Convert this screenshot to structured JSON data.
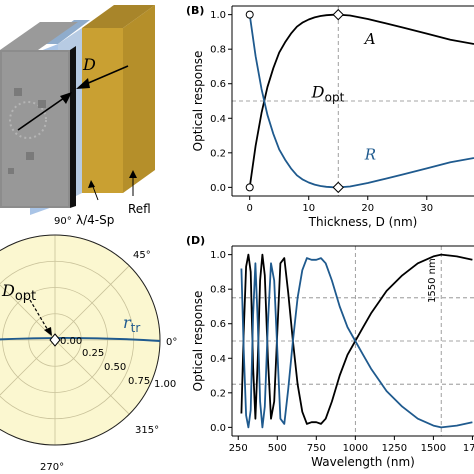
{
  "panels": {
    "b": "(B)",
    "d": "(D)"
  },
  "device": {
    "label_d": "D",
    "label_spacer": "λ/4-Sp",
    "label_refl": "Refl"
  },
  "polar": {
    "angle_labels": {
      "a90": "90°",
      "a45": "45°",
      "a0": "0°",
      "a315": "315°",
      "a270": "270°"
    },
    "radial_labels": {
      "r0": "0.00",
      "r25": "0.25",
      "r50": "0.50",
      "r75": "0.75",
      "r100": "1.00"
    },
    "dopt_label": "D",
    "dopt_sub": "opt",
    "rtr_label": "r",
    "rtr_sub": "tr"
  },
  "colors": {
    "a_curve": "#000000",
    "r_curve": "#1f5a8e",
    "polar_bg": "#fbf7d0",
    "reflector": "#c79a2c",
    "spacer": "#a9c4e6"
  },
  "chart_data": [
    {
      "panel": "B",
      "type": "line",
      "xlabel": "Thickness, D (nm)",
      "ylabel": "Optical response",
      "xlim": [
        -3,
        38
      ],
      "ylim": [
        -0.05,
        1.05
      ],
      "xticks": [
        "0",
        "10",
        "20",
        "30"
      ],
      "yticks": [
        "0.0",
        "0.2",
        "0.4",
        "0.6",
        "0.8",
        "1.0"
      ],
      "grid": "dashed reference lines at 0.5 and at x = 15",
      "annotation": {
        "text": "D",
        "sub": "opt",
        "x": 15
      },
      "series": [
        {
          "name": "A",
          "color": "#000000",
          "x": [
            0,
            1,
            2,
            3,
            4,
            5,
            6,
            7,
            8,
            9,
            10,
            11,
            12,
            13,
            14,
            15,
            17,
            20,
            23,
            26,
            30,
            34,
            38
          ],
          "y": [
            0,
            0.24,
            0.43,
            0.58,
            0.69,
            0.78,
            0.84,
            0.89,
            0.93,
            0.955,
            0.972,
            0.984,
            0.992,
            0.997,
            0.999,
            1.0,
            0.995,
            0.975,
            0.95,
            0.925,
            0.89,
            0.855,
            0.83
          ]
        },
        {
          "name": "R",
          "color": "#1f5a8e",
          "x": [
            0,
            1,
            2,
            3,
            4,
            5,
            6,
            7,
            8,
            9,
            10,
            11,
            12,
            13,
            14,
            15,
            17,
            20,
            23,
            26,
            30,
            34,
            38
          ],
          "y": [
            1.0,
            0.76,
            0.57,
            0.42,
            0.31,
            0.22,
            0.16,
            0.11,
            0.07,
            0.045,
            0.028,
            0.016,
            0.008,
            0.003,
            0.001,
            0.0,
            0.005,
            0.025,
            0.05,
            0.075,
            0.11,
            0.145,
            0.17
          ]
        }
      ],
      "markers": [
        {
          "x": 0,
          "y": 1.0,
          "shape": "circle"
        },
        {
          "x": 0,
          "y": 0.0,
          "shape": "circle"
        },
        {
          "x": 15,
          "y": 1.0,
          "shape": "diamond"
        },
        {
          "x": 15,
          "y": 0.0,
          "shape": "diamond"
        }
      ]
    },
    {
      "panel": "D",
      "type": "line",
      "xlabel": "Wavelength (nm)",
      "ylabel": "Optical response",
      "xlim": [
        210,
        1760
      ],
      "ylim": [
        -0.05,
        1.05
      ],
      "xticks": [
        "250",
        "500",
        "750",
        "1000",
        "1250",
        "1500",
        "175"
      ],
      "yticks": [
        "0.0",
        "0.2",
        "0.4",
        "0.6",
        "0.8",
        "1.0"
      ],
      "annotation": {
        "text": "1550 nm",
        "x": 1550
      },
      "grid": "dashed reference lines at 0.25, 0.5, 0.75 and at x = 1000, 1550",
      "series": [
        {
          "color": "#000000",
          "x": [
            270,
            285,
            300,
            315,
            330,
            345,
            360,
            375,
            390,
            405,
            420,
            440,
            460,
            480,
            500,
            520,
            545,
            570,
            600,
            630,
            660,
            690,
            720,
            750,
            780,
            810,
            850,
            900,
            950,
            1000,
            1050,
            1100,
            1200,
            1300,
            1400,
            1500,
            1550,
            1650,
            1750
          ],
          "y": [
            0.08,
            0.55,
            0.93,
            1.0,
            0.9,
            0.35,
            0.05,
            0.4,
            0.85,
            1.0,
            0.88,
            0.4,
            0.05,
            0.15,
            0.55,
            0.95,
            0.98,
            0.78,
            0.5,
            0.25,
            0.09,
            0.02,
            0.03,
            0.03,
            0.02,
            0.05,
            0.15,
            0.3,
            0.42,
            0.5,
            0.58,
            0.66,
            0.79,
            0.88,
            0.95,
            0.99,
            1.0,
            0.99,
            0.97
          ]
        },
        {
          "color": "#1f5a8e",
          "x": [
            270,
            285,
            300,
            315,
            330,
            345,
            360,
            375,
            390,
            405,
            420,
            440,
            460,
            480,
            500,
            520,
            545,
            570,
            600,
            630,
            660,
            690,
            720,
            750,
            780,
            810,
            850,
            900,
            950,
            1000,
            1050,
            1100,
            1200,
            1300,
            1400,
            1500,
            1550,
            1650,
            1750
          ],
          "y": [
            0.92,
            0.45,
            0.07,
            0.0,
            0.1,
            0.65,
            0.95,
            0.6,
            0.15,
            0.0,
            0.12,
            0.6,
            0.95,
            0.85,
            0.45,
            0.05,
            0.02,
            0.22,
            0.5,
            0.75,
            0.91,
            0.98,
            0.97,
            0.97,
            0.98,
            0.95,
            0.85,
            0.7,
            0.58,
            0.5,
            0.42,
            0.34,
            0.21,
            0.12,
            0.05,
            0.01,
            0.0,
            0.01,
            0.03
          ]
        }
      ]
    }
  ]
}
